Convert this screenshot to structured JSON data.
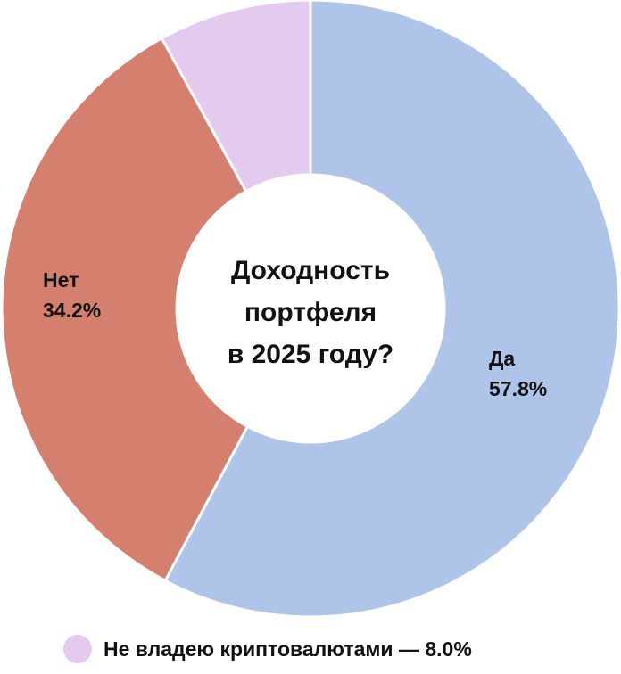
{
  "chart_data": {
    "type": "pie",
    "variant": "donut",
    "title_lines": [
      "Доходность",
      "портфеля",
      "в 2025 году?"
    ],
    "slices": [
      {
        "name": "Да",
        "value": 57.8,
        "value_label": "57.8%",
        "color": "#afc4e9"
      },
      {
        "name": "Нет",
        "value": 34.2,
        "value_label": "34.2%",
        "color": "#d5806f"
      },
      {
        "name": "Не владею криптовалютами",
        "value": 8.0,
        "value_label": "8.0%",
        "color": "#e3cbef"
      }
    ],
    "legend": {
      "text": "Не владею криптовалютами — 8.0%",
      "placement": "bottom",
      "marker_color": "#e3cbef"
    },
    "slice_order": "clockwise from 12 o'clock"
  }
}
